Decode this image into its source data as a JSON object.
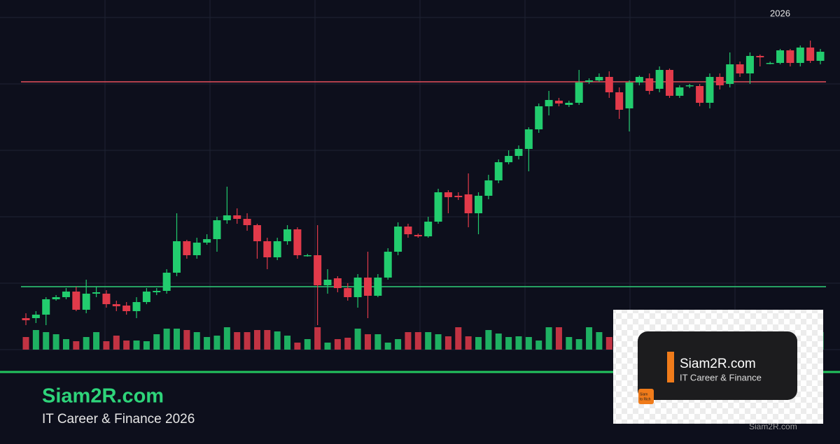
{
  "chart_data": {
    "type": "candlestick",
    "period_label": "2026",
    "ylim": [
      0,
      475
    ],
    "up_color": "#22cc6e",
    "down_color": "#e23a4a",
    "grid": true,
    "reference_lines": [
      {
        "value": 383,
        "color": "#e8505c"
      },
      {
        "value": 90,
        "color": "#2fd07a"
      }
    ],
    "open": [
      45,
      45,
      50,
      72,
      75,
      83,
      57,
      80,
      80,
      65,
      63,
      55,
      68,
      82,
      84,
      110,
      155,
      135,
      153,
      158,
      185,
      192,
      187,
      178,
      155,
      132,
      155,
      172,
      135,
      135,
      92,
      102,
      88,
      75,
      103,
      77,
      103,
      140,
      176,
      164,
      162,
      183,
      225,
      220,
      222,
      195,
      220,
      242,
      268,
      277,
      287,
      315,
      348,
      356,
      350,
      353,
      383,
      385,
      390,
      368,
      345,
      382,
      388,
      373,
      400,
      363,
      377,
      377,
      353,
      390,
      380,
      408,
      395,
      420,
      410,
      410,
      428,
      410,
      432,
      413
    ],
    "close": [
      42,
      50,
      72,
      75,
      83,
      57,
      80,
      82,
      65,
      62,
      55,
      68,
      83,
      84,
      110,
      155,
      135,
      153,
      158,
      185,
      192,
      187,
      178,
      155,
      132,
      155,
      172,
      135,
      135,
      92,
      100,
      88,
      75,
      103,
      77,
      103,
      140,
      176,
      165,
      162,
      183,
      225,
      218,
      218,
      195,
      220,
      242,
      268,
      277,
      287,
      315,
      348,
      357,
      352,
      353,
      382,
      385,
      390,
      368,
      343,
      382,
      390,
      370,
      400,
      363,
      375,
      378,
      353,
      390,
      378,
      408,
      395,
      420,
      418,
      410,
      428,
      410,
      432,
      413,
      426
    ],
    "high": [
      52,
      55,
      75,
      78,
      88,
      90,
      100,
      90,
      85,
      70,
      68,
      75,
      88,
      88,
      115,
      195,
      157,
      160,
      165,
      190,
      233,
      202,
      195,
      180,
      160,
      160,
      178,
      175,
      137,
      178,
      115,
      105,
      95,
      108,
      140,
      108,
      145,
      182,
      180,
      166,
      190,
      230,
      228,
      225,
      252,
      225,
      250,
      272,
      285,
      292,
      318,
      352,
      370,
      360,
      356,
      400,
      388,
      395,
      398,
      375,
      385,
      392,
      395,
      405,
      402,
      378,
      380,
      380,
      395,
      395,
      425,
      412,
      425,
      422,
      412,
      430,
      430,
      435,
      442,
      430
    ],
    "low": [
      35,
      38,
      35,
      70,
      72,
      55,
      52,
      75,
      60,
      55,
      50,
      45,
      65,
      78,
      80,
      105,
      130,
      130,
      150,
      140,
      180,
      180,
      170,
      130,
      115,
      128,
      150,
      130,
      133,
      35,
      80,
      82,
      70,
      60,
      45,
      75,
      100,
      135,
      160,
      160,
      160,
      180,
      195,
      214,
      175,
      165,
      215,
      238,
      265,
      272,
      255,
      310,
      335,
      348,
      347,
      350,
      380,
      383,
      360,
      330,
      312,
      378,
      365,
      368,
      360,
      360,
      374,
      348,
      345,
      372,
      375,
      390,
      380,
      405,
      408,
      408,
      405,
      405,
      410,
      408
    ],
    "volume": [
      18,
      28,
      25,
      22,
      15,
      12,
      18,
      25,
      12,
      20,
      13,
      13,
      12,
      22,
      30,
      30,
      28,
      25,
      18,
      20,
      32,
      25,
      25,
      28,
      28,
      26,
      20,
      10,
      15,
      32,
      10,
      15,
      17,
      30,
      22,
      22,
      10,
      15,
      25,
      25,
      25,
      22,
      19,
      32,
      19,
      18,
      28,
      23,
      18,
      19,
      18,
      13,
      32,
      32,
      18,
      15,
      32,
      25,
      18,
      15,
      15,
      13,
      25,
      20,
      20,
      22,
      18,
      25,
      15,
      20,
      25,
      22,
      18,
      20,
      22,
      15,
      25,
      18,
      20,
      25
    ]
  },
  "footer": {
    "brand": "Siam2R.com",
    "tagline": "IT Career & Finance 2026"
  },
  "watermark": {
    "brand": "Siam2R.com",
    "tagline": "IT Career & Finance",
    "badge_line1": "Siam",
    "badge_line2": "to Rich",
    "caption": "Siam2R.com"
  }
}
